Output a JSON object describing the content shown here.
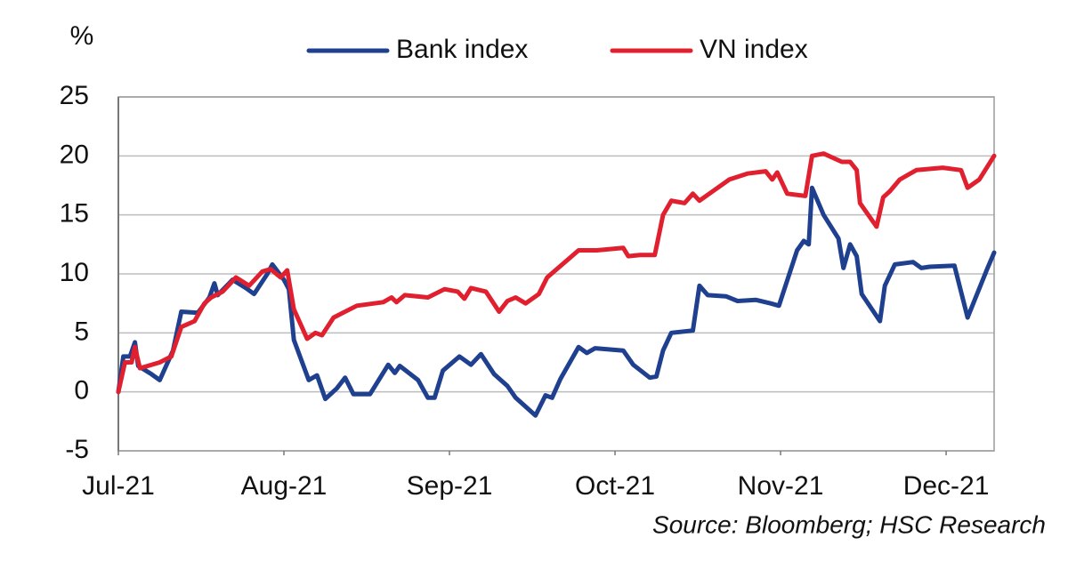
{
  "chart_data": {
    "type": "line",
    "y_unit": "%",
    "source": "Source: Bloomberg; HSC Research",
    "legend": "top",
    "grid": true,
    "ylim": [
      -5,
      25
    ],
    "yticks": [
      -5,
      0,
      5,
      10,
      15,
      20,
      25
    ],
    "xlim": [
      0,
      5.29
    ],
    "xticks": [
      {
        "value": 0,
        "label": "Jul-21"
      },
      {
        "value": 1,
        "label": "Aug-21"
      },
      {
        "value": 2,
        "label": "Sep-21"
      },
      {
        "value": 3,
        "label": "Oct-21"
      },
      {
        "value": 4,
        "label": "Nov-21"
      },
      {
        "value": 5,
        "label": "Dec-21"
      }
    ],
    "series": [
      {
        "name": "Bank index",
        "color": "#1f3f8f",
        "x": [
          0,
          0.03,
          0.07,
          0.1,
          0.12,
          0.2,
          0.25,
          0.33,
          0.38,
          0.48,
          0.55,
          0.58,
          0.6,
          0.69,
          0.77,
          0.82,
          0.9,
          0.93,
          1.0,
          1.03,
          1.06,
          1.15,
          1.2,
          1.25,
          1.32,
          1.37,
          1.42,
          1.52,
          1.63,
          1.67,
          1.7,
          1.81,
          1.87,
          1.91,
          1.96,
          2.06,
          2.13,
          2.19,
          2.27,
          2.35,
          2.4,
          2.48,
          2.52,
          2.58,
          2.62,
          2.67,
          2.78,
          2.83,
          2.88,
          3.05,
          3.11,
          3.21,
          3.25,
          3.29,
          3.34,
          3.47,
          3.51,
          3.56,
          3.67,
          3.74,
          3.85,
          3.94,
          3.99,
          4.1,
          4.14,
          4.17,
          4.19,
          4.26,
          4.35,
          4.38,
          4.42,
          4.46,
          4.49,
          4.6,
          4.63,
          4.69,
          4.8,
          4.85,
          4.9,
          5.05,
          5.13,
          5.25,
          5.29
        ],
        "values": [
          0,
          3,
          3,
          4.2,
          2.2,
          1.5,
          1,
          3.5,
          6.8,
          6.7,
          8,
          9.2,
          8.2,
          9.5,
          8.8,
          8.3,
          10,
          10.8,
          9.5,
          8.7,
          4.4,
          1,
          1.4,
          -0.6,
          0.3,
          1.2,
          -0.2,
          -0.2,
          2.3,
          1.6,
          2.2,
          1,
          -0.5,
          -0.5,
          1.8,
          3,
          2.3,
          3.2,
          1.5,
          0.5,
          -0.5,
          -1.5,
          -2,
          -0.3,
          -0.5,
          1.1,
          3.8,
          3.3,
          3.7,
          3.5,
          2.3,
          1.2,
          1.3,
          3.5,
          5,
          5.2,
          9,
          8.2,
          8.1,
          7.7,
          7.8,
          7.5,
          7.3,
          12,
          12.8,
          12.5,
          17.3,
          15,
          13,
          10.5,
          12.5,
          11.5,
          8.3,
          6,
          9,
          10.8,
          11,
          10.5,
          10.6,
          10.7,
          6.3,
          10.5,
          11.8
        ]
      },
      {
        "name": "VN index",
        "color": "#e0202e",
        "x": [
          0,
          0.04,
          0.08,
          0.1,
          0.13,
          0.25,
          0.32,
          0.38,
          0.46,
          0.52,
          0.56,
          0.63,
          0.71,
          0.79,
          0.87,
          0.92,
          0.98,
          1.02,
          1.06,
          1.14,
          1.19,
          1.23,
          1.3,
          1.44,
          1.6,
          1.65,
          1.68,
          1.73,
          1.87,
          1.97,
          2.05,
          2.09,
          2.13,
          2.22,
          2.3,
          2.35,
          2.4,
          2.46,
          2.54,
          2.59,
          2.78,
          2.89,
          3.05,
          3.08,
          3.15,
          3.24,
          3.29,
          3.34,
          3.42,
          3.47,
          3.51,
          3.59,
          3.69,
          3.8,
          3.91,
          3.95,
          3.98,
          4.04,
          4.15,
          4.19,
          4.26,
          4.37,
          4.42,
          4.46,
          4.48,
          4.58,
          4.62,
          4.66,
          4.72,
          4.82,
          4.98,
          5.09,
          5.13,
          5.2,
          5.29
        ],
        "values": [
          0,
          2.5,
          2.5,
          3.8,
          2,
          2.5,
          3,
          5.5,
          6,
          7.5,
          8,
          8.5,
          9.7,
          9,
          10.2,
          10.4,
          9.7,
          10.3,
          7,
          4.5,
          5,
          4.8,
          6.3,
          7.3,
          7.6,
          8,
          7.6,
          8.2,
          8,
          8.7,
          8.5,
          7.9,
          8.8,
          8.5,
          6.8,
          7.7,
          8,
          7.5,
          8.3,
          9.7,
          12,
          12,
          12.2,
          11.5,
          11.6,
          11.6,
          15,
          16.2,
          16,
          16.8,
          16.2,
          17,
          18,
          18.5,
          18.7,
          18,
          18.6,
          16.8,
          16.6,
          20,
          20.2,
          19.5,
          19.5,
          18.8,
          16,
          14,
          16.5,
          17,
          18,
          18.8,
          19,
          18.8,
          17.3,
          18,
          20
        ]
      }
    ]
  }
}
